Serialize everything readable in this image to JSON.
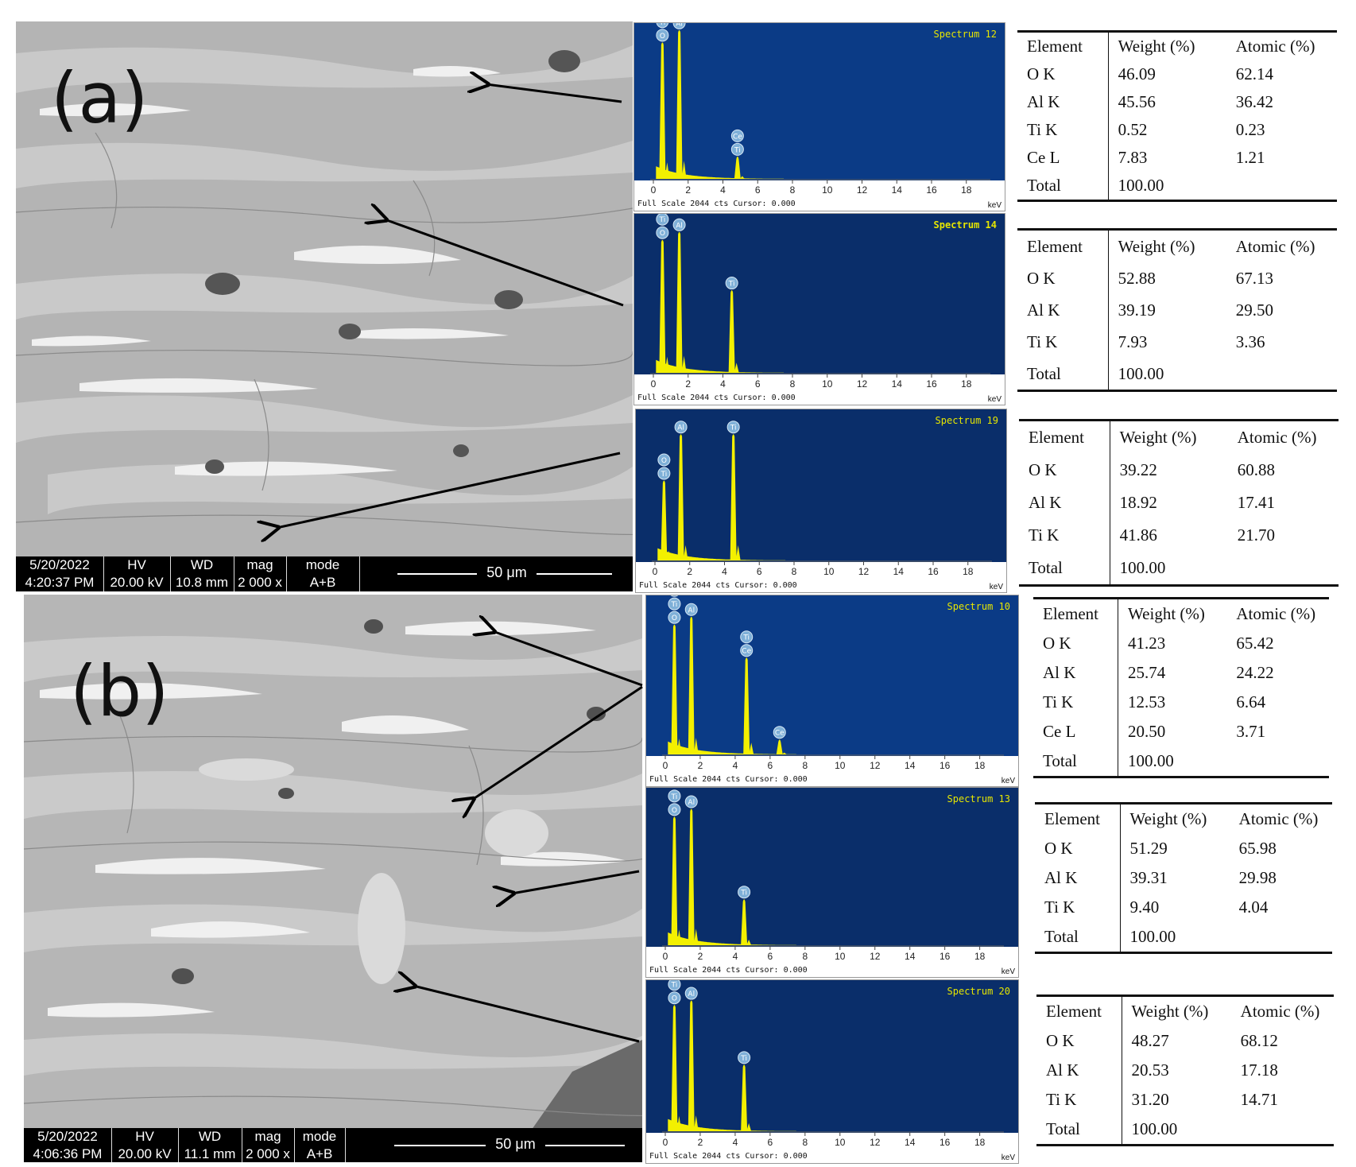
{
  "panels": [
    {
      "label": "(a)",
      "sem": {
        "date": "5/20/2022",
        "time": "4:20:37 PM",
        "hv_label": "HV",
        "hv": "20.00 kV",
        "wd_label": "WD",
        "wd": "10.8 mm",
        "mag_label": "mag",
        "mag": "2 000 x",
        "mode_label": "mode",
        "mode": "A+B",
        "scale": "50 μm"
      },
      "spectra": [
        {
          "title": "Spectrum 12",
          "title_bold": false,
          "footer": "Full Scale 2044 cts Cursor: 0.000",
          "unit": "keV",
          "bg": "#0b3b86",
          "peaks": [
            {
              "kev": 0.52,
              "h": 0.89,
              "labels": [
                "Ce",
                "Ti",
                "O"
              ]
            },
            {
              "kev": 1.49,
              "h": 0.97,
              "labels": [
                "Al"
              ]
            },
            {
              "kev": 4.84,
              "h": 0.15,
              "labels": [
                "Ce",
                "Ti"
              ]
            }
          ],
          "table": {
            "headers": [
              "Element",
              "Weight (%)",
              "Atomic (%)"
            ],
            "rows": [
              [
                "O K",
                "46.09",
                "62.14"
              ],
              [
                "Al K",
                "45.56",
                "36.42"
              ],
              [
                "Ti K",
                "0.52",
                "0.23"
              ],
              [
                "Ce L",
                "7.83",
                "1.21"
              ],
              [
                "Total",
                "100.00",
                ""
              ]
            ]
          }
        },
        {
          "title": "Spectrum 14",
          "title_bold": true,
          "footer": "Full Scale 2044 cts Cursor: 0.000",
          "unit": "keV",
          "bg": "#0a2e6a",
          "peaks": [
            {
              "kev": 0.52,
              "h": 0.85,
              "labels": [
                "Ti",
                "O"
              ]
            },
            {
              "kev": 1.49,
              "h": 0.9,
              "labels": [
                "Al"
              ]
            },
            {
              "kev": 4.51,
              "h": 0.53,
              "labels": [
                "Ti"
              ]
            }
          ],
          "table": {
            "headers": [
              "Element",
              "Weight (%)",
              "Atomic (%)"
            ],
            "rows": [
              [
                "O K",
                "52.88",
                "67.13"
              ],
              [
                "Al K",
                "39.19",
                "29.50"
              ],
              [
                "Ti K",
                "7.93",
                "3.36"
              ],
              [
                "Total",
                "100.00",
                ""
              ]
            ]
          }
        },
        {
          "title": "Spectrum 19",
          "title_bold": false,
          "footer": "Full Scale 2044 cts Cursor: 0.000",
          "unit": "keV",
          "bg": "#0a2e6a",
          "peaks": [
            {
              "kev": 0.52,
              "h": 0.54,
              "labels": [
                "O",
                "Ti"
              ]
            },
            {
              "kev": 1.49,
              "h": 0.85,
              "labels": [
                "Al"
              ]
            },
            {
              "kev": 4.51,
              "h": 0.85,
              "labels": [
                "Ti"
              ]
            }
          ],
          "table": {
            "headers": [
              "Element",
              "Weight (%)",
              "Atomic (%)"
            ],
            "rows": [
              [
                "O K",
                "39.22",
                "60.88"
              ],
              [
                "Al K",
                "18.92",
                "17.41"
              ],
              [
                "Ti K",
                "41.86",
                "21.70"
              ],
              [
                "Total",
                "100.00",
                ""
              ]
            ]
          }
        }
      ]
    },
    {
      "label": "(b)",
      "sem": {
        "date": "5/20/2022",
        "time": "4:06:36 PM",
        "hv_label": "HV",
        "hv": "20.00 kV",
        "wd_label": "WD",
        "wd": "11.1 mm",
        "mag_label": "mag",
        "mag": "2 000 x",
        "mode_label": "mode",
        "mode": "A+B",
        "scale": "50 μm"
      },
      "spectra": [
        {
          "title": "Spectrum 10",
          "title_bold": false,
          "footer": "Full Scale 2044 cts Cursor: 0.000",
          "unit": "keV",
          "bg": "#0b3b86",
          "peaks": [
            {
              "kev": 0.52,
              "h": 0.83,
              "labels": [
                "Ce",
                "Ti",
                "O"
              ]
            },
            {
              "kev": 1.49,
              "h": 0.88,
              "labels": [
                "Al"
              ]
            },
            {
              "kev": 4.65,
              "h": 0.62,
              "labels": [
                "Ti",
                "Ce"
              ]
            },
            {
              "kev": 6.54,
              "h": 0.1,
              "labels": [
                "Ce"
              ]
            }
          ],
          "table": {
            "headers": [
              "Element",
              "Weight (%)",
              "Atomic (%)"
            ],
            "rows": [
              [
                "O K",
                "41.23",
                "65.42"
              ],
              [
                "Al K",
                "25.74",
                "24.22"
              ],
              [
                "Ti K",
                "12.53",
                "6.64"
              ],
              [
                "Ce L",
                "20.50",
                "3.71"
              ],
              [
                "Total",
                "100.00",
                ""
              ]
            ]
          }
        },
        {
          "title": "Spectrum 13",
          "title_bold": false,
          "footer": "Full Scale 2044 cts Cursor: 0.000",
          "unit": "keV",
          "bg": "#0a2e6a",
          "peaks": [
            {
              "kev": 0.52,
              "h": 0.83,
              "labels": [
                "Ti",
                "O"
              ]
            },
            {
              "kev": 1.49,
              "h": 0.88,
              "labels": [
                "Al"
              ]
            },
            {
              "kev": 4.51,
              "h": 0.3,
              "labels": [
                "Ti"
              ]
            }
          ],
          "table": {
            "headers": [
              "Element",
              "Weight (%)",
              "Atomic (%)"
            ],
            "rows": [
              [
                "O K",
                "51.29",
                "65.98"
              ],
              [
                "Al K",
                "39.31",
                "29.98"
              ],
              [
                "Ti K",
                "9.40",
                "4.04"
              ],
              [
                "Total",
                "100.00",
                ""
              ]
            ]
          }
        },
        {
          "title": "Spectrum 20",
          "title_bold": false,
          "footer": "Full Scale 2044 cts Cursor: 0.000",
          "unit": "keV",
          "bg": "#0a2e6a",
          "peaks": [
            {
              "kev": 0.52,
              "h": 0.85,
              "labels": [
                "Ti",
                "O"
              ]
            },
            {
              "kev": 1.49,
              "h": 0.88,
              "labels": [
                "Al"
              ]
            },
            {
              "kev": 4.51,
              "h": 0.45,
              "labels": [
                "Ti"
              ]
            }
          ],
          "table": {
            "headers": [
              "Element",
              "Weight (%)",
              "Atomic (%)"
            ],
            "rows": [
              [
                "O K",
                "48.27",
                "68.12"
              ],
              [
                "Al K",
                "20.53",
                "17.18"
              ],
              [
                "Ti K",
                "31.20",
                "14.71"
              ],
              [
                "Total",
                "100.00",
                ""
              ]
            ]
          }
        }
      ]
    }
  ],
  "axis_ticks": [
    "0",
    "2",
    "4",
    "6",
    "8",
    "10",
    "12",
    "14",
    "16",
    "18"
  ],
  "colors": {
    "peak": "#f3f000",
    "title": "#e6e600",
    "sem_gray": "#b9b9b9"
  }
}
